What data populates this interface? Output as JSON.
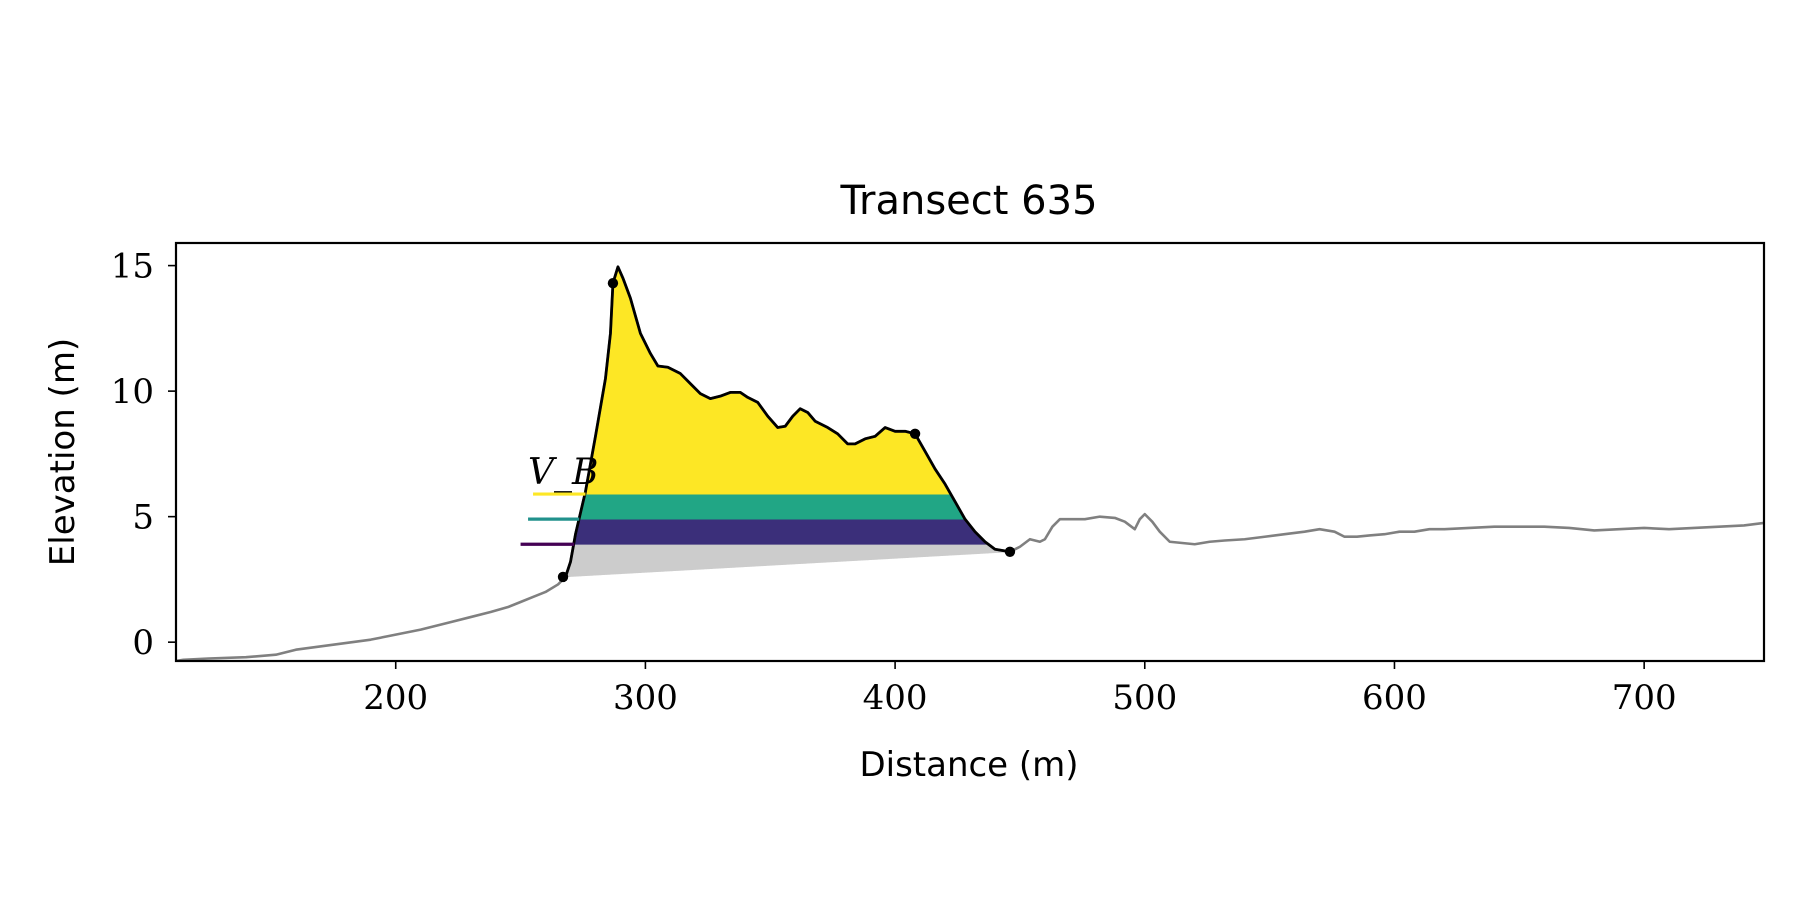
{
  "chart_data": {
    "type": "area",
    "title": "Transect 635",
    "xlabel": "Distance (m)",
    "ylabel": "Elevation (m)",
    "xlim": [
      112,
      748
    ],
    "ylim": [
      -0.75,
      15.9
    ],
    "xticks": [
      200,
      300,
      400,
      500,
      600,
      700
    ],
    "yticks": [
      0,
      5,
      10,
      15
    ],
    "grid": false,
    "annotation": "V_B",
    "colors": {
      "profile": "#808080",
      "dune_outline": "#000000",
      "fill_above_5.9": "#fde725",
      "band_4.9_5.9": "#21a685",
      "band_3.9_4.9": "#3b2f7a",
      "base_wedge": "#cccccc",
      "tick_3.9": "#440154",
      "tick_4.9": "#21918c",
      "tick_5.9": "#fde725"
    },
    "profile": [
      [
        112,
        -0.75
      ],
      [
        115,
        -0.7
      ],
      [
        125,
        -0.65
      ],
      [
        140,
        -0.6
      ],
      [
        152,
        -0.5
      ],
      [
        160,
        -0.3
      ],
      [
        175,
        -0.1
      ],
      [
        190,
        0.1
      ],
      [
        200,
        0.3
      ],
      [
        210,
        0.5
      ],
      [
        216,
        0.65
      ],
      [
        222,
        0.8
      ],
      [
        230,
        1.0
      ],
      [
        238,
        1.2
      ],
      [
        245,
        1.4
      ],
      [
        250,
        1.6
      ],
      [
        255,
        1.8
      ],
      [
        260,
        2.0
      ],
      [
        265,
        2.3
      ],
      [
        268,
        2.6
      ],
      [
        270,
        3.2
      ],
      [
        272,
        4.3
      ],
      [
        276,
        6.0
      ],
      [
        280,
        8.2
      ],
      [
        284,
        10.5
      ],
      [
        286,
        12.3
      ],
      [
        287,
        14.3
      ],
      [
        289,
        14.95
      ],
      [
        291,
        14.5
      ],
      [
        294,
        13.7
      ],
      [
        298,
        12.3
      ],
      [
        302,
        11.5
      ],
      [
        305,
        11.0
      ],
      [
        309,
        10.95
      ],
      [
        314,
        10.7
      ],
      [
        318,
        10.3
      ],
      [
        322,
        9.9
      ],
      [
        326,
        9.7
      ],
      [
        330,
        9.8
      ],
      [
        334,
        9.95
      ],
      [
        338,
        9.95
      ],
      [
        341,
        9.75
      ],
      [
        345,
        9.55
      ],
      [
        349,
        9.0
      ],
      [
        353,
        8.55
      ],
      [
        356,
        8.6
      ],
      [
        359,
        9.0
      ],
      [
        362,
        9.3
      ],
      [
        365,
        9.15
      ],
      [
        368,
        8.8
      ],
      [
        373,
        8.55
      ],
      [
        377,
        8.3
      ],
      [
        381,
        7.9
      ],
      [
        384,
        7.9
      ],
      [
        388,
        8.1
      ],
      [
        392,
        8.2
      ],
      [
        396,
        8.55
      ],
      [
        400,
        8.4
      ],
      [
        404,
        8.4
      ],
      [
        408,
        8.3
      ],
      [
        412,
        7.6
      ],
      [
        416,
        6.9
      ],
      [
        420,
        6.3
      ],
      [
        424,
        5.6
      ],
      [
        428,
        4.9
      ],
      [
        432,
        4.4
      ],
      [
        436,
        4.0
      ],
      [
        440,
        3.7
      ],
      [
        446,
        3.6
      ],
      [
        450,
        3.8
      ],
      [
        454,
        4.1
      ],
      [
        458,
        4.0
      ],
      [
        460,
        4.1
      ],
      [
        463,
        4.6
      ],
      [
        466,
        4.9
      ],
      [
        470,
        4.9
      ],
      [
        476,
        4.9
      ],
      [
        482,
        5.0
      ],
      [
        488,
        4.95
      ],
      [
        492,
        4.8
      ],
      [
        496,
        4.5
      ],
      [
        498,
        4.9
      ],
      [
        500,
        5.1
      ],
      [
        503,
        4.8
      ],
      [
        506,
        4.4
      ],
      [
        510,
        4.0
      ],
      [
        515,
        3.95
      ],
      [
        520,
        3.9
      ],
      [
        526,
        4.0
      ],
      [
        532,
        4.05
      ],
      [
        540,
        4.1
      ],
      [
        548,
        4.2
      ],
      [
        556,
        4.3
      ],
      [
        564,
        4.4
      ],
      [
        570,
        4.5
      ],
      [
        576,
        4.4
      ],
      [
        580,
        4.2
      ],
      [
        585,
        4.2
      ],
      [
        590,
        4.25
      ],
      [
        596,
        4.3
      ],
      [
        602,
        4.4
      ],
      [
        608,
        4.4
      ],
      [
        614,
        4.5
      ],
      [
        620,
        4.5
      ],
      [
        630,
        4.55
      ],
      [
        640,
        4.6
      ],
      [
        650,
        4.6
      ],
      [
        660,
        4.6
      ],
      [
        670,
        4.55
      ],
      [
        680,
        4.45
      ],
      [
        690,
        4.5
      ],
      [
        700,
        4.55
      ],
      [
        710,
        4.5
      ],
      [
        720,
        4.55
      ],
      [
        730,
        4.6
      ],
      [
        740,
        4.65
      ],
      [
        748,
        4.75
      ]
    ],
    "dune_start_x": 267,
    "dune_end_x": 446,
    "base_line": [
      [
        267,
        2.6
      ],
      [
        446,
        3.6
      ]
    ],
    "markers": [
      [
        267,
        2.6
      ],
      [
        287,
        14.3
      ],
      [
        408,
        8.3
      ],
      [
        446,
        3.6
      ]
    ],
    "bands": [
      {
        "y_low": 3.9,
        "y_high": 4.9
      },
      {
        "y_low": 4.9,
        "y_high": 5.9
      },
      {
        "y_low": 5.9,
        "y_high": "profile"
      }
    ],
    "level_ticks": [
      {
        "y": 3.9,
        "x_start": 250
      },
      {
        "y": 4.9,
        "x_start": 253
      },
      {
        "y": 5.9,
        "x_start": 255
      }
    ]
  }
}
